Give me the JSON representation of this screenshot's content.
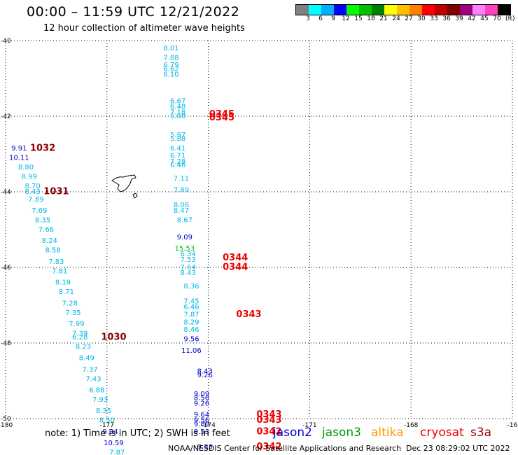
{
  "header": {
    "title": "00:00 – 11:59 UTC 12/21/2022",
    "subtitle": "12 hour collection of altimeter wave heights"
  },
  "legend": {
    "colors": [
      "#808080",
      "#00ffff",
      "#00b0ff",
      "#0000ff",
      "#00ff00",
      "#00c000",
      "#008000",
      "#ffff00",
      "#ffc000",
      "#ff8000",
      "#ff0000",
      "#c00000",
      "#800000",
      "#a00080",
      "#ff80ff",
      "#ff40c0",
      "#000000"
    ],
    "ticks": [
      "3",
      "6",
      "9",
      "12",
      "15",
      "18",
      "21",
      "24",
      "27",
      "30",
      "33",
      "36",
      "39",
      "42",
      "45",
      "70"
    ],
    "unit": "(ft)"
  },
  "footer": {
    "note": "note:  1) Time is in UTC; 2) SWH is in feet",
    "satellites": [
      {
        "name": "jason2",
        "color": "#0000cc"
      },
      {
        "name": "jason3",
        "color": "#009900"
      },
      {
        "name": "altika",
        "color": "#ff9900"
      },
      {
        "name": "cryosat",
        "color": "#ee0000"
      },
      {
        "name": "s3a",
        "color": "#990000"
      }
    ],
    "credit": "NOAA/NESDIS Center for Satellite Applications and Research",
    "timestamp": "Dec 23 08:29:02 UTC 2022"
  },
  "chart_data": {
    "type": "scatter",
    "xlim": [
      -180,
      -165
    ],
    "ylim": [
      -50,
      -40
    ],
    "x_ticks": [
      "-180",
      "-177",
      "-174",
      "-171",
      "-168",
      "-16"
    ],
    "y_ticks": [
      "-40",
      "-42",
      "-44",
      "-46",
      "-48",
      "-50"
    ],
    "grid": true,
    "colors": {
      "cyan": "#00b8e6",
      "blue": "#0000cc",
      "green": "#00bb00",
      "red": "#ee0000",
      "darkred": "#8b0000"
    },
    "points": [
      {
        "x": -175.1,
        "y": -40.2,
        "label": "8.01",
        "c": "cyan"
      },
      {
        "x": -175.1,
        "y": -40.45,
        "label": "7.88",
        "c": "cyan"
      },
      {
        "x": -175.1,
        "y": -40.65,
        "label": "6.79",
        "c": "cyan"
      },
      {
        "x": -175.1,
        "y": -40.75,
        "label": "6.62",
        "c": "cyan"
      },
      {
        "x": -175.1,
        "y": -40.9,
        "label": "6.10",
        "c": "cyan"
      },
      {
        "x": -174.9,
        "y": -41.6,
        "label": "6.67",
        "c": "cyan"
      },
      {
        "x": -174.9,
        "y": -41.75,
        "label": "6.48",
        "c": "cyan"
      },
      {
        "x": -174.9,
        "y": -41.9,
        "label": "7.18",
        "c": "cyan"
      },
      {
        "x": -174.9,
        "y": -42.0,
        "label": "6.08",
        "c": "cyan"
      },
      {
        "x": -173.6,
        "y": -41.95,
        "label": "0345",
        "c": "red"
      },
      {
        "x": -173.6,
        "y": -42.05,
        "label": "0345",
        "c": "red"
      },
      {
        "x": -174.9,
        "y": -42.5,
        "label": "5.97",
        "c": "cyan"
      },
      {
        "x": -174.9,
        "y": -42.6,
        "label": "5.88",
        "c": "cyan"
      },
      {
        "x": -174.9,
        "y": -42.85,
        "label": "6.41",
        "c": "cyan"
      },
      {
        "x": -174.9,
        "y": -43.05,
        "label": "6.71",
        "c": "cyan"
      },
      {
        "x": -174.9,
        "y": -43.2,
        "label": "7.28",
        "c": "cyan"
      },
      {
        "x": -174.9,
        "y": -43.3,
        "label": "6.46",
        "c": "cyan"
      },
      {
        "x": -174.8,
        "y": -43.65,
        "label": "7.11",
        "c": "cyan"
      },
      {
        "x": -174.8,
        "y": -43.95,
        "label": "7.89",
        "c": "cyan"
      },
      {
        "x": -174.8,
        "y": -44.35,
        "label": "8.06",
        "c": "cyan"
      },
      {
        "x": -174.8,
        "y": -44.5,
        "label": "8.47",
        "c": "cyan"
      },
      {
        "x": -174.7,
        "y": -44.75,
        "label": "8.67",
        "c": "cyan"
      },
      {
        "x": -174.7,
        "y": -45.2,
        "label": "9.09",
        "c": "blue"
      },
      {
        "x": -174.7,
        "y": -45.5,
        "label": "15.53",
        "c": "green"
      },
      {
        "x": -174.6,
        "y": -45.65,
        "label": "6.34",
        "c": "cyan"
      },
      {
        "x": -174.6,
        "y": -45.8,
        "label": "7.53",
        "c": "cyan"
      },
      {
        "x": -173.2,
        "y": -45.75,
        "label": "0344",
        "c": "red"
      },
      {
        "x": -174.6,
        "y": -46.0,
        "label": "7.64",
        "c": "cyan"
      },
      {
        "x": -173.2,
        "y": -46.0,
        "label": "0344",
        "c": "red"
      },
      {
        "x": -174.6,
        "y": -46.15,
        "label": "8.43",
        "c": "cyan"
      },
      {
        "x": -174.5,
        "y": -46.5,
        "label": "8.36",
        "c": "cyan"
      },
      {
        "x": -174.5,
        "y": -46.9,
        "label": "7.45",
        "c": "cyan"
      },
      {
        "x": -174.5,
        "y": -47.05,
        "label": "6.46",
        "c": "cyan"
      },
      {
        "x": -174.5,
        "y": -47.25,
        "label": "7.87",
        "c": "cyan"
      },
      {
        "x": -172.8,
        "y": -47.25,
        "label": "0343",
        "c": "red"
      },
      {
        "x": -174.5,
        "y": -47.45,
        "label": "8.29",
        "c": "cyan"
      },
      {
        "x": -174.5,
        "y": -47.65,
        "label": "8.46",
        "c": "cyan"
      },
      {
        "x": -174.5,
        "y": -47.9,
        "label": "9.56",
        "c": "blue"
      },
      {
        "x": -174.5,
        "y": -48.2,
        "label": "11.06",
        "c": "blue"
      },
      {
        "x": -174.1,
        "y": -48.75,
        "label": "8.43",
        "c": "blue"
      },
      {
        "x": -174.1,
        "y": -48.85,
        "label": "9.26",
        "c": "blue"
      },
      {
        "x": -174.2,
        "y": -49.35,
        "label": "9.09",
        "c": "blue"
      },
      {
        "x": -174.2,
        "y": -49.45,
        "label": "8.56",
        "c": "blue"
      },
      {
        "x": -174.2,
        "y": -49.6,
        "label": "9.26",
        "c": "blue"
      },
      {
        "x": -174.2,
        "y": -49.9,
        "label": "9.64",
        "c": "blue"
      },
      {
        "x": -174.2,
        "y": -50.05,
        "label": "9.56",
        "c": "blue"
      },
      {
        "x": -174.2,
        "y": -50.15,
        "label": "9.89",
        "c": "blue"
      },
      {
        "x": -174.2,
        "y": -50.35,
        "label": "9.53",
        "c": "blue"
      },
      {
        "x": -174.1,
        "y": -50.75,
        "label": "9.33",
        "c": "blue"
      },
      {
        "x": -172.2,
        "y": -49.9,
        "label": "0343",
        "c": "red"
      },
      {
        "x": -172.2,
        "y": -50.05,
        "label": "0343",
        "c": "red"
      },
      {
        "x": -172.2,
        "y": -50.35,
        "label": "0342",
        "c": "red"
      },
      {
        "x": -172.2,
        "y": -50.75,
        "label": "0342",
        "c": "red"
      },
      {
        "x": -179.6,
        "y": -42.85,
        "label": "9.91",
        "c": "blue"
      },
      {
        "x": -178.9,
        "y": -42.85,
        "label": "1032",
        "c": "darkred"
      },
      {
        "x": -179.6,
        "y": -43.1,
        "label": "10.11",
        "c": "blue"
      },
      {
        "x": -179.4,
        "y": -43.35,
        "label": "8.80",
        "c": "cyan"
      },
      {
        "x": -179.3,
        "y": -43.6,
        "label": "8.99",
        "c": "cyan"
      },
      {
        "x": -179.2,
        "y": -43.85,
        "label": "8.70",
        "c": "cyan"
      },
      {
        "x": -179.2,
        "y": -44.0,
        "label": "8.43",
        "c": "cyan"
      },
      {
        "x": -178.5,
        "y": -44.0,
        "label": "1031",
        "c": "darkred"
      },
      {
        "x": -179.1,
        "y": -44.2,
        "label": "7.89",
        "c": "cyan"
      },
      {
        "x": -179.0,
        "y": -44.5,
        "label": "7.69",
        "c": "cyan"
      },
      {
        "x": -178.9,
        "y": -44.75,
        "label": "8.35",
        "c": "cyan"
      },
      {
        "x": -178.8,
        "y": -45.0,
        "label": "7.66",
        "c": "cyan"
      },
      {
        "x": -178.7,
        "y": -45.3,
        "label": "8.24",
        "c": "cyan"
      },
      {
        "x": -178.6,
        "y": -45.55,
        "label": "8.58",
        "c": "cyan"
      },
      {
        "x": -178.5,
        "y": -45.85,
        "label": "7.83",
        "c": "cyan"
      },
      {
        "x": -178.4,
        "y": -46.1,
        "label": "7.81",
        "c": "cyan"
      },
      {
        "x": -178.3,
        "y": -46.4,
        "label": "8.19",
        "c": "cyan"
      },
      {
        "x": -178.2,
        "y": -46.65,
        "label": "8.71",
        "c": "cyan"
      },
      {
        "x": -178.1,
        "y": -46.95,
        "label": "7.28",
        "c": "cyan"
      },
      {
        "x": -178.0,
        "y": -47.2,
        "label": "7.35",
        "c": "cyan"
      },
      {
        "x": -177.9,
        "y": -47.5,
        "label": "7.99",
        "c": "cyan"
      },
      {
        "x": -177.8,
        "y": -47.75,
        "label": "7.39",
        "c": "cyan"
      },
      {
        "x": -177.8,
        "y": -47.85,
        "label": "6.28",
        "c": "cyan"
      },
      {
        "x": -176.8,
        "y": -47.85,
        "label": "1030",
        "c": "darkred"
      },
      {
        "x": -177.7,
        "y": -48.1,
        "label": "8.23",
        "c": "cyan"
      },
      {
        "x": -177.6,
        "y": -48.4,
        "label": "8.49",
        "c": "cyan"
      },
      {
        "x": -177.5,
        "y": -48.7,
        "label": "7.37",
        "c": "cyan"
      },
      {
        "x": -177.4,
        "y": -48.95,
        "label": "7.43",
        "c": "cyan"
      },
      {
        "x": -177.3,
        "y": -49.25,
        "label": "6.88",
        "c": "cyan"
      },
      {
        "x": -177.2,
        "y": -49.5,
        "label": "7.93",
        "c": "cyan"
      },
      {
        "x": -177.1,
        "y": -49.8,
        "label": "8.35",
        "c": "cyan"
      },
      {
        "x": -177.0,
        "y": -50.05,
        "label": "8.50",
        "c": "cyan"
      },
      {
        "x": -176.9,
        "y": -50.35,
        "label": "9.34",
        "c": "blue"
      },
      {
        "x": -176.8,
        "y": -50.65,
        "label": "10.59",
        "c": "blue"
      },
      {
        "x": -176.7,
        "y": -50.9,
        "label": "7.87",
        "c": "cyan"
      }
    ]
  }
}
